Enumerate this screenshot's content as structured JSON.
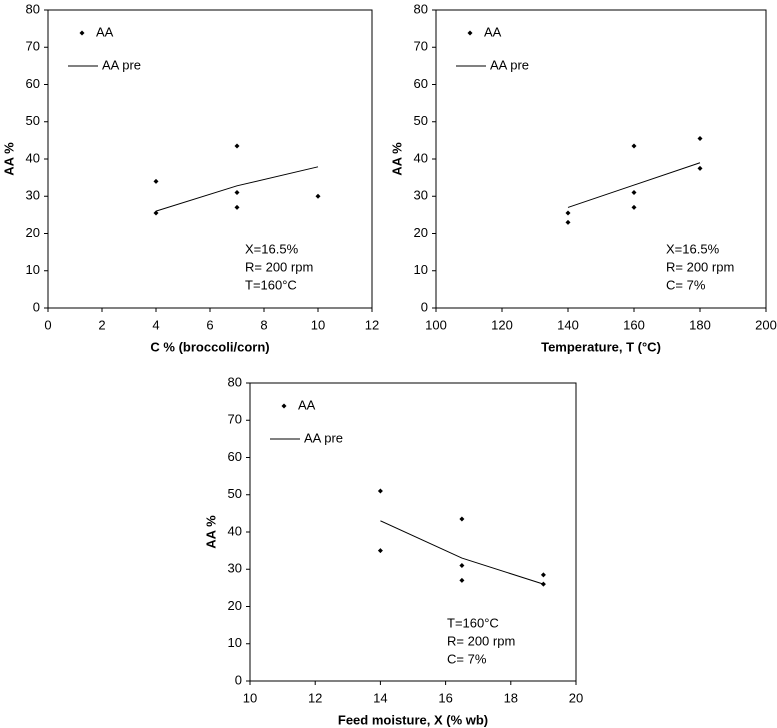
{
  "chart_data": [
    {
      "type": "scatter",
      "xlabel": "C % (broccoli/corn)",
      "ylabel": "AA %",
      "xlim": [
        0,
        12
      ],
      "xticks": [
        0,
        2,
        4,
        6,
        8,
        10,
        12
      ],
      "ylim": [
        0,
        80
      ],
      "yticks": [
        0,
        10,
        20,
        30,
        40,
        50,
        60,
        70,
        80
      ],
      "legend": "upper left",
      "series": [
        {
          "name": "AA",
          "style": "points",
          "color": "#000000",
          "x": [
            4,
            4,
            7,
            7,
            7,
            10
          ],
          "values": [
            34,
            25.5,
            43.5,
            31,
            27,
            30
          ]
        },
        {
          "name": "AA pre",
          "style": "line",
          "color": "#000000",
          "x": [
            4,
            7,
            10
          ],
          "values": [
            26,
            32.8,
            37.9
          ]
        }
      ],
      "annotations": [
        "X=16.5%",
        "R= 200 rpm",
        "T=160°C"
      ]
    },
    {
      "type": "scatter",
      "xlabel": "Temperature, T (°C)",
      "ylabel": "AA %",
      "xlim": [
        100,
        200
      ],
      "xticks": [
        100,
        120,
        140,
        160,
        180,
        200
      ],
      "ylim": [
        0,
        80
      ],
      "yticks": [
        0,
        10,
        20,
        30,
        40,
        50,
        60,
        70,
        80
      ],
      "legend": "upper left",
      "series": [
        {
          "name": "AA",
          "style": "points",
          "color": "#000000",
          "x": [
            140,
            140,
            160,
            160,
            160,
            180,
            180
          ],
          "values": [
            25.5,
            23,
            43.5,
            31,
            27,
            45.5,
            37.5
          ]
        },
        {
          "name": "AA pre",
          "style": "line",
          "color": "#000000",
          "x": [
            140,
            160,
            180
          ],
          "values": [
            27,
            33,
            39
          ]
        }
      ],
      "annotations": [
        "X=16.5%",
        "R= 200 rpm",
        "C= 7%"
      ]
    },
    {
      "type": "scatter",
      "xlabel": "Feed moisture, X (% wb)",
      "ylabel": "AA %",
      "xlim": [
        10,
        20
      ],
      "xticks": [
        10,
        12,
        14,
        16,
        18,
        20
      ],
      "ylim": [
        0,
        80
      ],
      "yticks": [
        0,
        10,
        20,
        30,
        40,
        50,
        60,
        70,
        80
      ],
      "legend": "upper left",
      "series": [
        {
          "name": "AA",
          "style": "points",
          "color": "#000000",
          "x": [
            14,
            14,
            16.5,
            16.5,
            16.5,
            19,
            19
          ],
          "values": [
            51,
            35,
            43.5,
            31,
            27,
            28.5,
            26
          ]
        },
        {
          "name": "AA pre",
          "style": "line",
          "color": "#000000",
          "x": [
            14,
            16.5,
            19
          ],
          "values": [
            43,
            33,
            26
          ]
        }
      ],
      "annotations": [
        "T=160°C",
        "R= 200 rpm",
        "C= 7%"
      ]
    }
  ]
}
